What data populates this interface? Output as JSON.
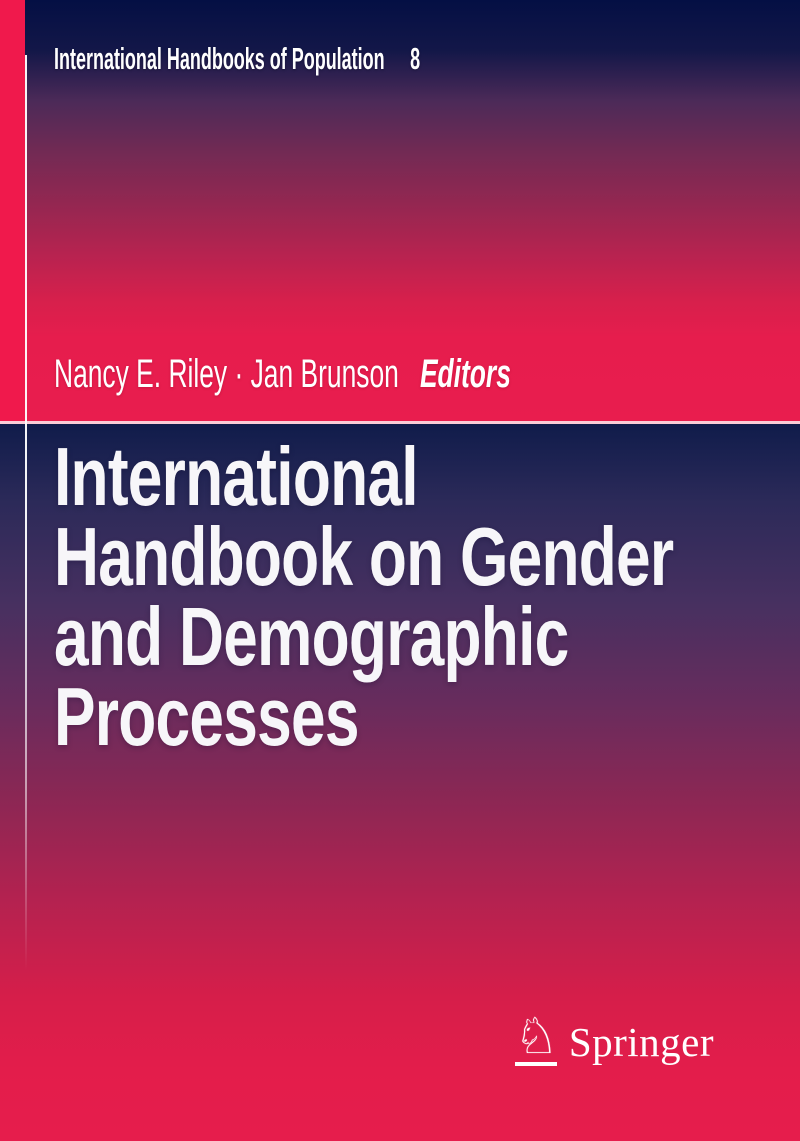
{
  "cover": {
    "series": {
      "title": "International Handbooks of Population",
      "number": "8"
    },
    "authors": {
      "names": "Nancy E. Riley · Jan Brunson",
      "role_label": "Editors"
    },
    "title": {
      "lines": [
        "International",
        "Handbook on Gender",
        "and Demographic",
        "Processes"
      ]
    },
    "publisher": {
      "name": "Springer",
      "logo_icon": "springer-horse-knight-icon",
      "knight_glyph": "♘"
    },
    "colors": {
      "crimson": "#e81d4e",
      "spine_stripe_crimson": "#f0194c",
      "navy_top": "#040f44",
      "navy_lower_block": "#101c4b",
      "mid_purple": "#4c2a58",
      "text_white": "#ffffff"
    }
  }
}
